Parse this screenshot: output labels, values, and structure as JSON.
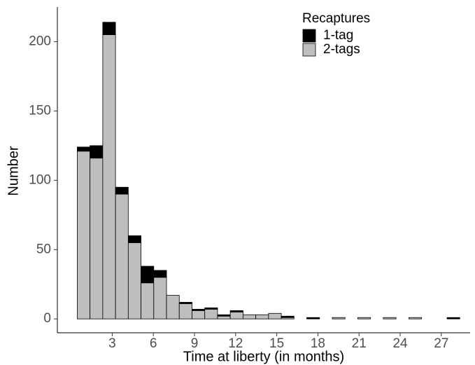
{
  "chart_data": {
    "type": "histogram",
    "x_label": "Time at liberty (in months)",
    "y_label": "Number",
    "legend_title": "Recaptures",
    "legend_position": "top-right",
    "bins": [
      0.45,
      1.38,
      2.31,
      3.24,
      4.17,
      5.1,
      6.03,
      6.96,
      7.89,
      8.82,
      9.75,
      10.68,
      11.61,
      12.54,
      13.47,
      14.4,
      15.33,
      16.26,
      17.19,
      18.12,
      19.05,
      19.98,
      20.91,
      21.84,
      22.77,
      23.7,
      24.63,
      25.56,
      26.49,
      27.42,
      28.35
    ],
    "series": [
      {
        "name": "2-tags",
        "color": "#bebebe",
        "values": [
          121,
          116,
          205,
          90,
          55,
          26,
          30,
          17,
          11,
          6,
          7,
          2,
          5,
          3,
          3,
          4,
          1,
          0,
          0,
          0,
          1,
          0,
          1,
          0,
          1,
          0,
          1,
          0,
          0,
          0
        ]
      },
      {
        "name": "1-tag",
        "color": "#000000",
        "values": [
          3,
          9,
          9,
          5,
          5,
          12,
          5,
          0,
          1,
          1,
          1,
          1,
          1,
          0,
          0,
          0,
          1,
          0,
          1,
          0,
          0,
          0,
          0,
          0,
          0,
          0,
          0,
          0,
          0,
          1
        ]
      }
    ],
    "xlim": [
      -1,
      29.1
    ],
    "ylim": [
      -10,
      225
    ],
    "xticks": [
      3,
      6,
      9,
      12,
      15,
      18,
      21,
      24,
      27
    ],
    "yticks": [
      0,
      50,
      100,
      150,
      200
    ]
  }
}
